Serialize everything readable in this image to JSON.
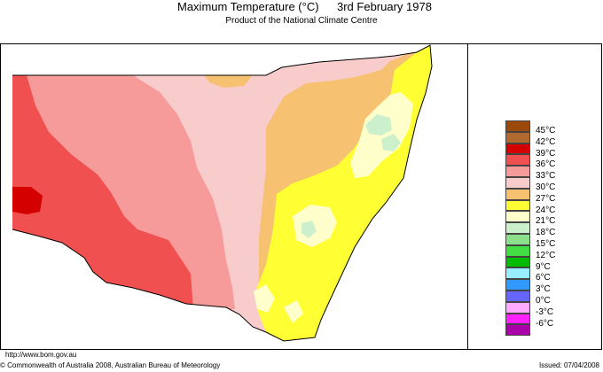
{
  "header": {
    "title": "Maximum Temperature (°C)",
    "date": "3rd February 1978",
    "subtitle": "Product of the National Climate Centre"
  },
  "legend": {
    "items": [
      {
        "label": "45°C",
        "color": "#9c4a0c"
      },
      {
        "label": "42°C",
        "color": "#b06a30"
      },
      {
        "label": "39°C",
        "color": "#d40000"
      },
      {
        "label": "36°C",
        "color": "#f05050"
      },
      {
        "label": "33°C",
        "color": "#f69a9a"
      },
      {
        "label": "30°C",
        "color": "#f9cccc"
      },
      {
        "label": "27°C",
        "color": "#f6c271"
      },
      {
        "label": "24°C",
        "color": "#ffff33"
      },
      {
        "label": "21°C",
        "color": "#ffffcc"
      },
      {
        "label": "18°C",
        "color": "#ccf0cc"
      },
      {
        "label": "15°C",
        "color": "#8ce08c"
      },
      {
        "label": "12°C",
        "color": "#44dd44"
      },
      {
        "label": "9°C",
        "color": "#00bb00"
      },
      {
        "label": "6°C",
        "color": "#99eeff"
      },
      {
        "label": "3°C",
        "color": "#3399ff"
      },
      {
        "label": "0°C",
        "color": "#6666ff"
      },
      {
        "label": "-3°C",
        "color": "#ffaaff"
      },
      {
        "label": "-6°C",
        "color": "#ff22ff"
      },
      {
        "label": "",
        "color": "#aa00aa"
      }
    ]
  },
  "footer": {
    "url": "http://www.bom.gov.au",
    "copyright": "© Commonwealth of Australia 2008, Australian Bureau of Meteorology",
    "issued": "Issued: 07/04/2008"
  }
}
